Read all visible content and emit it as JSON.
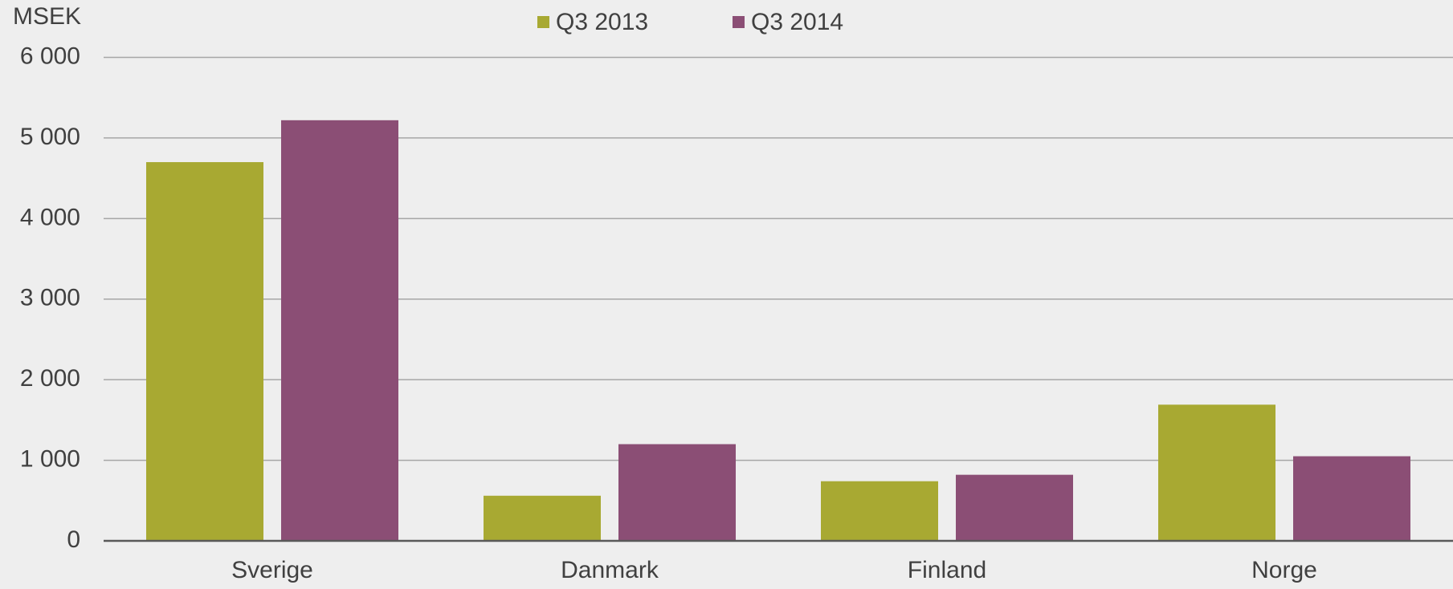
{
  "chart_data": {
    "type": "bar",
    "y_axis_label": "MSEK",
    "categories": [
      "Sverige",
      "Danmark",
      "Finland",
      "Norge"
    ],
    "series": [
      {
        "name": "Q3 2013",
        "color": "#a8a932",
        "values": [
          4700,
          560,
          740,
          1690
        ]
      },
      {
        "name": "Q3 2014",
        "color": "#8b4e75",
        "values": [
          5220,
          1200,
          820,
          1050
        ]
      }
    ],
    "ylim": [
      0,
      6000
    ],
    "yticks": [
      0,
      {
        "value": 1000,
        "label": "1 000"
      },
      {
        "value": 2000,
        "label": "2 000"
      },
      {
        "value": 3000,
        "label": "3 000"
      },
      {
        "value": 4000,
        "label": "4 000"
      },
      {
        "value": 5000,
        "label": "5 000"
      },
      {
        "value": 6000,
        "label": "6 000"
      }
    ],
    "grid": true,
    "legend": "top"
  }
}
